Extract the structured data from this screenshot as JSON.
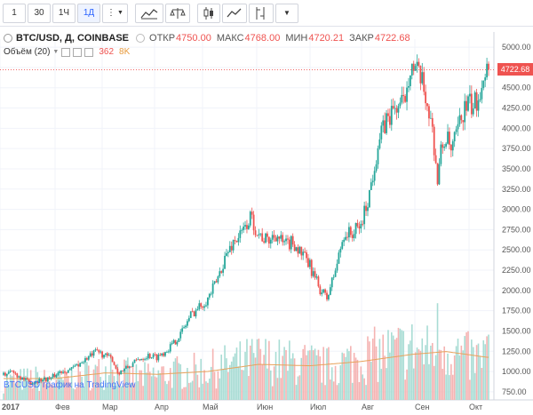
{
  "toolbar": {
    "items": [
      {
        "label": "1",
        "active": false
      },
      {
        "label": "30",
        "active": false
      },
      {
        "label": "1Ч",
        "active": false
      },
      {
        "label": "1Д",
        "active": true
      }
    ],
    "icons": [
      "more-vertical-icon",
      "indicators-icon",
      "compare-icon",
      "candles-icon",
      "line-chart-icon",
      "drawing-tools-icon",
      "chevron-down-icon"
    ]
  },
  "legend": {
    "symbol": "BTC/USD, Д, COINBASE",
    "open_label": "ОТКР",
    "open": "4750.00",
    "high_label": "МАКС",
    "high": "4768.00",
    "low_label": "МИН",
    "low": "4720.21",
    "close_label": "ЗАКР",
    "close": "4722.68"
  },
  "volume_legend": {
    "label": "Объём (20)",
    "value": "362",
    "ma": "8K"
  },
  "watermark": "BTCUSD график на TradingView",
  "last_price_tag": "4722.68",
  "colors": {
    "up": "#26a69a",
    "down": "#ef5350",
    "volume_up": "#a8dcd4",
    "volume_down": "#f5b3b2",
    "volume_ma": "#e8a25a",
    "accent": "#2962ff"
  },
  "chart_data": {
    "type": "candlestick",
    "title": "BTC/USD, Д, COINBASE",
    "x_labels": [
      "2017",
      "Фев",
      "Мар",
      "Апр",
      "Май",
      "Июн",
      "Июл",
      "Авг",
      "Сен",
      "Окт"
    ],
    "y_ticks": [
      750,
      1000,
      1250,
      1500,
      1750,
      2000,
      2250,
      2500,
      2750,
      3000,
      3250,
      3500,
      3750,
      4000,
      4250,
      4500,
      4750,
      5000
    ],
    "ylim": [
      650,
      5100
    ],
    "last_price": 4722.68,
    "volume_ma_period": 20,
    "close_series": [
      [
        0,
        960
      ],
      [
        5,
        1000
      ],
      [
        10,
        930
      ],
      [
        15,
        860
      ],
      [
        20,
        890
      ],
      [
        28,
        920
      ],
      [
        33,
        1000
      ],
      [
        40,
        1030
      ],
      [
        48,
        1150
      ],
      [
        55,
        1250
      ],
      [
        60,
        1190
      ],
      [
        64,
        1150
      ],
      [
        67,
        990
      ],
      [
        70,
        1010
      ],
      [
        75,
        1080
      ],
      [
        80,
        1160
      ],
      [
        85,
        1200
      ],
      [
        90,
        1180
      ],
      [
        95,
        1250
      ],
      [
        100,
        1350
      ],
      [
        105,
        1500
      ],
      [
        110,
        1700
      ],
      [
        115,
        1800
      ],
      [
        120,
        1900
      ],
      [
        125,
        2100
      ],
      [
        130,
        2400
      ],
      [
        135,
        2600
      ],
      [
        140,
        2700
      ],
      [
        145,
        2900
      ],
      [
        150,
        2700
      ],
      [
        155,
        2600
      ],
      [
        160,
        2700
      ],
      [
        165,
        2550
      ],
      [
        170,
        2600
      ],
      [
        175,
        2450
      ],
      [
        180,
        2300
      ],
      [
        185,
        2050
      ],
      [
        190,
        1900
      ],
      [
        195,
        2250
      ],
      [
        200,
        2700
      ],
      [
        205,
        2700
      ],
      [
        210,
        2800
      ],
      [
        215,
        3200
      ],
      [
        220,
        3800
      ],
      [
        225,
        4100
      ],
      [
        230,
        4250
      ],
      [
        235,
        4300
      ],
      [
        239,
        4800
      ],
      [
        242,
        4700
      ],
      [
        245,
        4600
      ],
      [
        248,
        4400
      ],
      [
        251,
        4100
      ],
      [
        253,
        3800
      ],
      [
        255,
        3350
      ],
      [
        257,
        3700
      ],
      [
        260,
        3900
      ],
      [
        263,
        3700
      ],
      [
        266,
        3900
      ],
      [
        270,
        4200
      ],
      [
        273,
        4300
      ],
      [
        276,
        4250
      ],
      [
        279,
        4400
      ],
      [
        282,
        4700
      ],
      [
        284,
        4722.68
      ]
    ],
    "volume_series": [
      [
        0,
        130
      ],
      [
        10,
        140
      ],
      [
        20,
        150
      ],
      [
        30,
        120
      ],
      [
        40,
        160
      ],
      [
        50,
        180
      ],
      [
        60,
        200
      ],
      [
        63,
        340
      ],
      [
        67,
        200
      ],
      [
        80,
        160
      ],
      [
        90,
        170
      ],
      [
        100,
        190
      ],
      [
        110,
        200
      ],
      [
        120,
        210
      ],
      [
        130,
        240
      ],
      [
        140,
        260
      ],
      [
        150,
        290
      ],
      [
        160,
        270
      ],
      [
        170,
        260
      ],
      [
        180,
        250
      ],
      [
        190,
        230
      ],
      [
        200,
        260
      ],
      [
        210,
        290
      ],
      [
        220,
        320
      ],
      [
        230,
        340
      ],
      [
        240,
        360
      ],
      [
        250,
        330
      ],
      [
        255,
        420
      ],
      [
        260,
        380
      ],
      [
        270,
        300
      ],
      [
        280,
        280
      ],
      [
        284,
        362
      ]
    ],
    "volume_ma_series": [
      [
        0,
        150
      ],
      [
        30,
        150
      ],
      [
        60,
        190
      ],
      [
        90,
        180
      ],
      [
        120,
        200
      ],
      [
        150,
        250
      ],
      [
        180,
        240
      ],
      [
        210,
        270
      ],
      [
        240,
        320
      ],
      [
        260,
        340
      ],
      [
        284,
        300
      ]
    ]
  }
}
